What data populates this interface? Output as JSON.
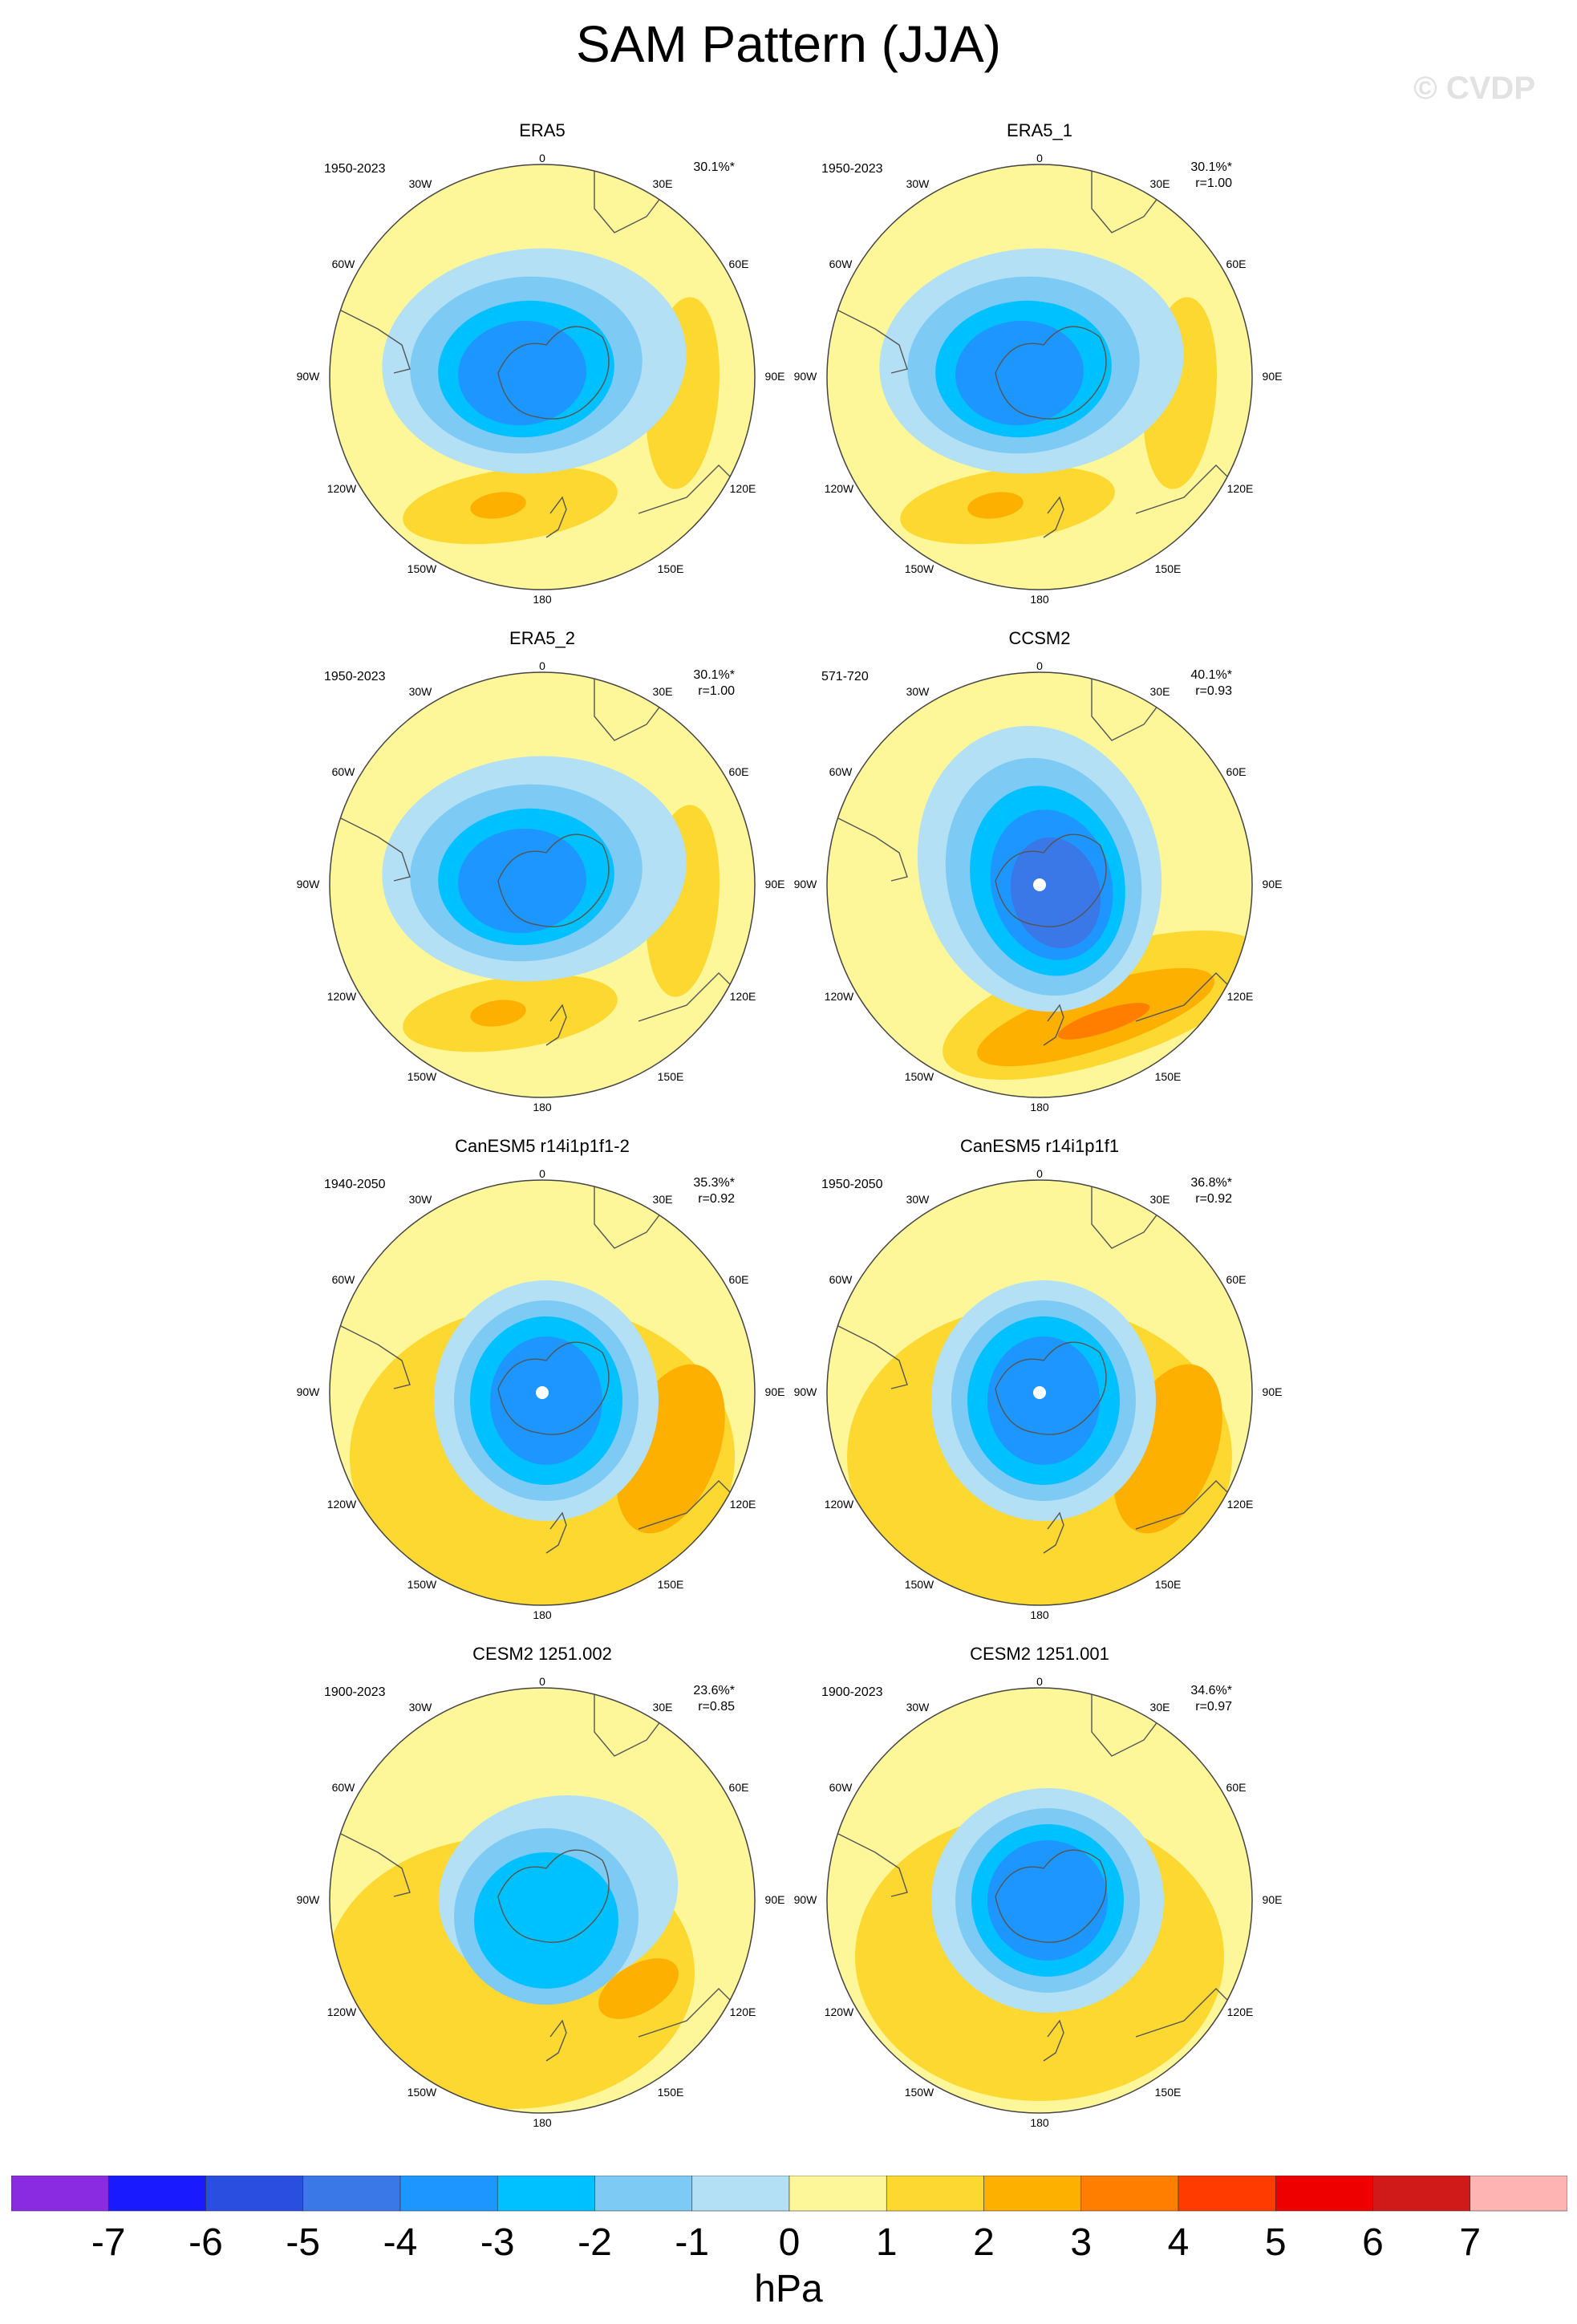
{
  "title": "SAM Pattern (JJA)",
  "watermark": "© CVDP",
  "panels": [
    {
      "name": "ERA5",
      "period": "1950-2023",
      "variance": "30.1%*",
      "r": ""
    },
    {
      "name": "ERA5_1",
      "period": "1950-2023",
      "variance": "30.1%*",
      "r": "r=1.00"
    },
    {
      "name": "ERA5_2",
      "period": "1950-2023",
      "variance": "30.1%*",
      "r": "r=1.00"
    },
    {
      "name": "CCSM2",
      "period": "571-720",
      "variance": "40.1%*",
      "r": "r=0.93"
    },
    {
      "name": "CanESM5 r14i1p1f1-2",
      "period": "1940-2050",
      "variance": "35.3%*",
      "r": "r=0.92"
    },
    {
      "name": "CanESM5 r14i1p1f1",
      "period": "1950-2050",
      "variance": "36.8%*",
      "r": "r=0.92"
    },
    {
      "name": "CESM2 1251.002",
      "period": "1900-2023",
      "variance": "23.6%*",
      "r": "r=0.85"
    },
    {
      "name": "CESM2 1251.001",
      "period": "1900-2023",
      "variance": "34.6%*",
      "r": "r=0.97"
    }
  ],
  "longitude_labels": [
    "0",
    "30E",
    "60E",
    "90E",
    "120E",
    "150E",
    "180",
    "150W",
    "120W",
    "90W",
    "60W",
    "30W"
  ],
  "colorbar": {
    "unit": "hPa",
    "labels": [
      "-7",
      "-6",
      "-5",
      "-4",
      "-3",
      "-2",
      "-1",
      "0",
      "1",
      "2",
      "3",
      "4",
      "5",
      "6",
      "7"
    ],
    "colors": [
      "#8a2be2",
      "#1a1aff",
      "#2a4fe0",
      "#3a78e8",
      "#1e96ff",
      "#00c1ff",
      "#7dcbf5",
      "#b4e0f5",
      "#fdf79a",
      "#fdd830",
      "#fdb000",
      "#ff7e00",
      "#ff3b00",
      "#ee0000",
      "#d01a1a",
      "#ffb4b4"
    ]
  }
}
